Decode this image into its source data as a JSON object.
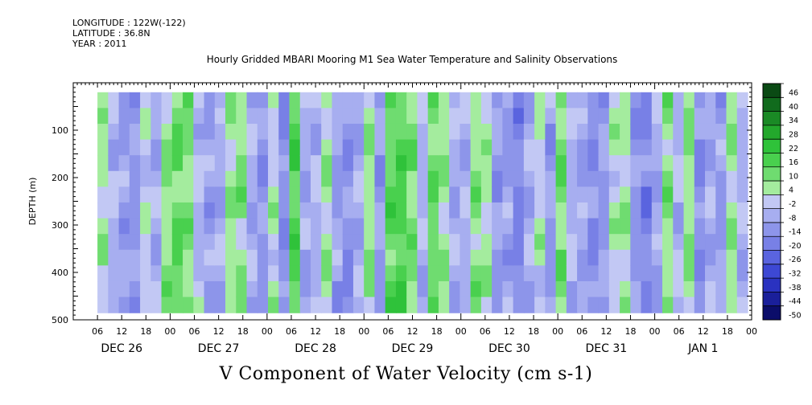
{
  "header": {
    "longitude": "LONGITUDE : 122W(-122)",
    "latitude": "LATITUDE : 36.8N",
    "year": "YEAR : 2011",
    "title": "Hourly Gridded MBARI Mooring M1 Sea Water Temperature and Salinity Observations"
  },
  "footer": {
    "variable_title": "V Component of Water Velocity (cm s-1)"
  },
  "chart_data": {
    "type": "heatmap",
    "title": "Hourly Gridded MBARI Mooring M1 Sea Water Temperature and Salinity Observations",
    "xlabel": "",
    "ylabel": "DEPTH (m)",
    "x_hours_range": [
      0,
      168
    ],
    "x_day_labels": [
      "DEC 26",
      "DEC 27",
      "DEC 28",
      "DEC 29",
      "DEC 30",
      "DEC 31",
      "JAN  1"
    ],
    "x_hour_ticks": [
      "06",
      "12",
      "18",
      "00"
    ],
    "y_ticks": [
      100,
      200,
      300,
      400,
      500
    ],
    "ylim": [
      500,
      0
    ],
    "data_depth_range": [
      20,
      485
    ],
    "data_hours_range": [
      6,
      167
    ],
    "colorbar": {
      "levels": [
        46,
        40,
        34,
        28,
        22,
        16,
        10,
        4,
        -2,
        -8,
        -14,
        -20,
        -26,
        -32,
        -38,
        -44,
        -50
      ],
      "colors": [
        "#0a4a14",
        "#116b1d",
        "#1a8a25",
        "#23a82c",
        "#2fc23a",
        "#49d04e",
        "#6fdc70",
        "#a4ec9e",
        "#c2c8f4",
        "#a7aef0",
        "#8d95ea",
        "#7880e6",
        "#5a64df",
        "#3d48d4",
        "#2a32c0",
        "#1a1f9a",
        "#0b0d6a"
      ]
    },
    "columns_v": [
      6,
      -4,
      -8,
      -10,
      2,
      -6,
      10,
      14,
      12,
      -2,
      -8,
      -6,
      8,
      10,
      -6,
      -10,
      4,
      -12,
      18,
      -6,
      -4,
      6,
      -8,
      -12,
      -6,
      8,
      -10,
      16,
      18,
      12,
      -4,
      14,
      8,
      -6,
      -4,
      10,
      6,
      -10,
      -8,
      -14,
      -6,
      4,
      -8,
      12,
      -4,
      -6,
      -12,
      -8,
      4,
      6,
      -10,
      -14,
      -6,
      10,
      -4,
      8,
      -12,
      -6,
      -8,
      8,
      -4
    ]
  }
}
